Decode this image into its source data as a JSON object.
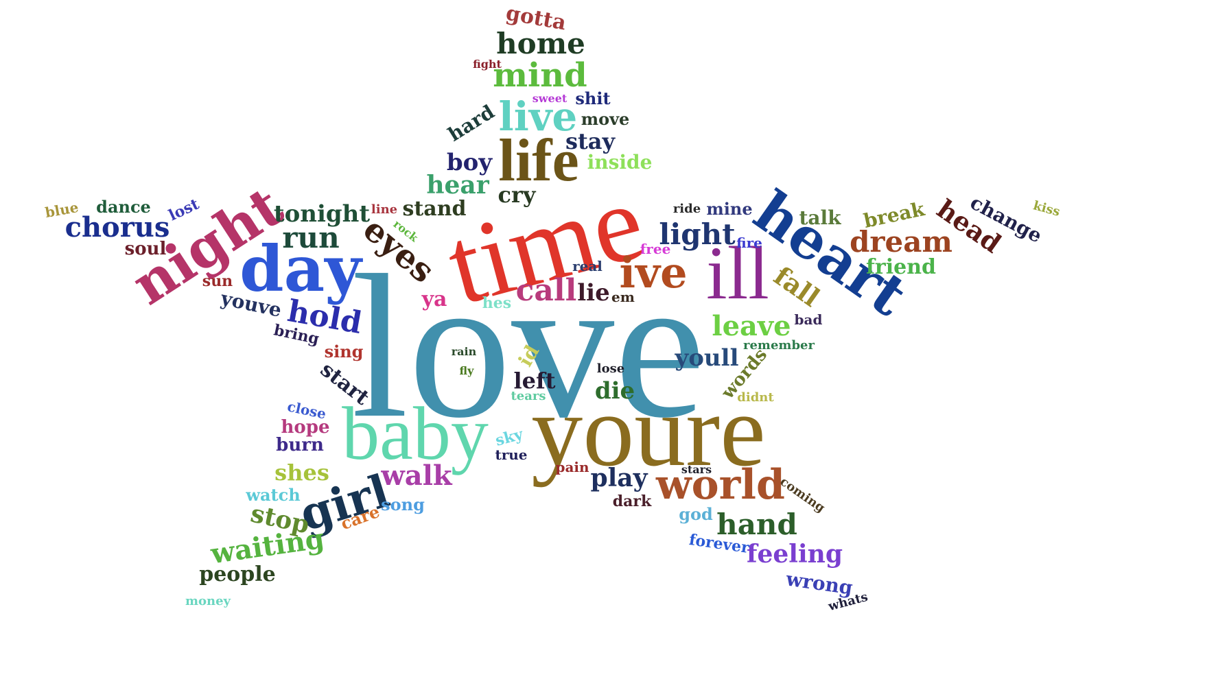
{
  "words": [
    {
      "id": "love",
      "text": "love",
      "color": "#4190ad"
    },
    {
      "id": "youre",
      "text": "youre",
      "color": "#8a6c1f"
    },
    {
      "id": "time",
      "text": "time",
      "color": "#e0352a"
    },
    {
      "id": "baby",
      "text": "baby",
      "color": "#5fd6ad"
    },
    {
      "id": "ill",
      "text": "ill",
      "color": "#8b2a8f"
    },
    {
      "id": "heart",
      "text": "heart",
      "color": "#133e91"
    },
    {
      "id": "day",
      "text": "day",
      "color": "#2e57d6"
    },
    {
      "id": "night",
      "text": "night",
      "color": "#b53468"
    },
    {
      "id": "life",
      "text": "life",
      "color": "#6b5418"
    },
    {
      "id": "world",
      "text": "world",
      "color": "#a8512a"
    },
    {
      "id": "ive",
      "text": "ive",
      "color": "#b24b1f"
    },
    {
      "id": "girl",
      "text": "girl",
      "color": "#173452"
    },
    {
      "id": "live",
      "text": "live",
      "color": "#5fd1c1"
    },
    {
      "id": "mind",
      "text": "mind",
      "color": "#5cbb3d"
    },
    {
      "id": "home",
      "text": "home",
      "color": "#1f3c24"
    },
    {
      "id": "dream",
      "text": "dream",
      "color": "#9c4320"
    },
    {
      "id": "eyes",
      "text": "eyes",
      "color": "#3a1f12"
    },
    {
      "id": "call",
      "text": "call",
      "color": "#b83b7c"
    },
    {
      "id": "hold",
      "text": "hold",
      "color": "#2b2dac"
    },
    {
      "id": "run",
      "text": "run",
      "color": "#1d4a3a"
    },
    {
      "id": "chorus",
      "text": "chorus",
      "color": "#1a2e8e"
    },
    {
      "id": "light",
      "text": "light",
      "color": "#1f3570"
    },
    {
      "id": "hand",
      "text": "hand",
      "color": "#2c5e2a"
    },
    {
      "id": "leave",
      "text": "leave",
      "color": "#6ccf43"
    },
    {
      "id": "walk",
      "text": "walk",
      "color": "#a83ea7"
    },
    {
      "id": "waiting",
      "text": "waiting",
      "color": "#55b33f"
    },
    {
      "id": "head",
      "text": "head",
      "color": "#5a1a16"
    },
    {
      "id": "fall",
      "text": "fall",
      "color": "#9a8a2a"
    },
    {
      "id": "youll",
      "text": "youll",
      "color": "#274a7a"
    },
    {
      "id": "feeling",
      "text": "feeling",
      "color": "#7a3fd0"
    },
    {
      "id": "tonight",
      "text": "tonight",
      "color": "#1f4f36"
    },
    {
      "id": "hear",
      "text": "hear",
      "color": "#3aa06b"
    },
    {
      "id": "die",
      "text": "die",
      "color": "#2e6d2d"
    },
    {
      "id": "stop",
      "text": "stop",
      "color": "#5f8a2e"
    },
    {
      "id": "play",
      "text": "play",
      "color": "#1e2f5e"
    },
    {
      "id": "boy",
      "text": "boy",
      "color": "#23236e"
    },
    {
      "id": "stay",
      "text": "stay",
      "color": "#1d2b5b"
    },
    {
      "id": "shes",
      "text": "shes",
      "color": "#a6c23a"
    },
    {
      "id": "youve",
      "text": "youve",
      "color": "#23315f"
    },
    {
      "id": "lie",
      "text": "lie",
      "color": "#3d1a2a"
    },
    {
      "id": "left",
      "text": "left",
      "color": "#261a33"
    },
    {
      "id": "cry",
      "text": "cry",
      "color": "#283a22"
    },
    {
      "id": "stand",
      "text": "stand",
      "color": "#2e3d20"
    },
    {
      "id": "change",
      "text": "change",
      "color": "#20214a"
    },
    {
      "id": "break",
      "text": "break",
      "color": "#7e8a2a"
    },
    {
      "id": "friend",
      "text": "friend",
      "color": "#4bb34a"
    },
    {
      "id": "people",
      "text": "people",
      "color": "#2c4520"
    },
    {
      "id": "wrong",
      "text": "wrong",
      "color": "#3a40b5"
    },
    {
      "id": "start",
      "text": "start",
      "color": "#1f2340"
    },
    {
      "id": "hard",
      "text": "hard",
      "color": "#1d3d3a"
    },
    {
      "id": "inside",
      "text": "inside",
      "color": "#8ee05a"
    },
    {
      "id": "talk",
      "text": "talk",
      "color": "#5a7a3a"
    },
    {
      "id": "words",
      "text": "words",
      "color": "#6b7a2a"
    },
    {
      "id": "ya",
      "text": "ya",
      "color": "#d8348a"
    },
    {
      "id": "dance",
      "text": "dance",
      "color": "#1f5c3a"
    },
    {
      "id": "mine",
      "text": "mine",
      "color": "#323a7e"
    },
    {
      "id": "gotta",
      "text": "gotta",
      "color": "#a33a3a"
    },
    {
      "id": "sing",
      "text": "sing",
      "color": "#b0342e"
    },
    {
      "id": "bring",
      "text": "bring",
      "color": "#2a1f55"
    },
    {
      "id": "hope",
      "text": "hope",
      "color": "#b53a7e"
    },
    {
      "id": "burn",
      "text": "burn",
      "color": "#3e2a8a"
    },
    {
      "id": "soul",
      "text": "soul",
      "color": "#6b1f2a"
    },
    {
      "id": "move",
      "text": "move",
      "color": "#2b3d2a"
    },
    {
      "id": "shit",
      "text": "shit",
      "color": "#1f2a7a"
    },
    {
      "id": "id",
      "text": "id",
      "color": "#c6cc5a"
    },
    {
      "id": "watch",
      "text": "watch",
      "color": "#5bc9d6"
    },
    {
      "id": "song",
      "text": "song",
      "color": "#4d9de0"
    },
    {
      "id": "care",
      "text": "care",
      "color": "#d9722a"
    },
    {
      "id": "god",
      "text": "god",
      "color": "#5bb0d6"
    },
    {
      "id": "forever",
      "text": "forever",
      "color": "#2a5ad6"
    },
    {
      "id": "coming",
      "text": "coming",
      "color": "#4a3a1f"
    },
    {
      "id": "lost",
      "text": "lost",
      "color": "#3a3ab5"
    },
    {
      "id": "sun",
      "text": "sun",
      "color": "#9a2a2a"
    },
    {
      "id": "blue",
      "text": "blue",
      "color": "#a8953a"
    },
    {
      "id": "line",
      "text": "line",
      "color": "#a8343e"
    },
    {
      "id": "rock",
      "text": "rock",
      "color": "#5ab53a"
    },
    {
      "id": "ride",
      "text": "ride",
      "color": "#2a2a2a"
    },
    {
      "id": "fire",
      "text": "fire",
      "color": "#3a3ad0"
    },
    {
      "id": "free",
      "text": "free",
      "color": "#d63ad6"
    },
    {
      "id": "real",
      "text": "real",
      "color": "#2a3d6e"
    },
    {
      "id": "hes",
      "text": "hes",
      "color": "#7de0c8"
    },
    {
      "id": "em",
      "text": "em",
      "color": "#3a2a1f"
    },
    {
      "id": "bad",
      "text": "bad",
      "color": "#3a2a5a"
    },
    {
      "id": "remember",
      "text": "remember",
      "color": "#2a7a4a"
    },
    {
      "id": "rain",
      "text": "rain",
      "color": "#2a4a2a"
    },
    {
      "id": "fly",
      "text": "fly",
      "color": "#4a7a1f"
    },
    {
      "id": "lose",
      "text": "lose",
      "color": "#1f1f2a"
    },
    {
      "id": "tears",
      "text": "tears",
      "color": "#5fcba0"
    },
    {
      "id": "didnt",
      "text": "didnt",
      "color": "#b8b84a"
    },
    {
      "id": "close",
      "text": "close",
      "color": "#3a5ad0"
    },
    {
      "id": "sky",
      "text": "sky",
      "color": "#6ad6e0"
    },
    {
      "id": "true",
      "text": "true",
      "color": "#1f1f5a"
    },
    {
      "id": "pain",
      "text": "pain",
      "color": "#9a2a2a"
    },
    {
      "id": "stars",
      "text": "stars",
      "color": "#1f1f2a"
    },
    {
      "id": "dark",
      "text": "dark",
      "color": "#4a1f2a"
    },
    {
      "id": "sweet",
      "text": "sweet",
      "color": "#b53ad6"
    },
    {
      "id": "fight",
      "text": "fight",
      "color": "#8a1f2a"
    },
    {
      "id": "kiss",
      "text": "kiss",
      "color": "#9aa83a"
    },
    {
      "id": "money",
      "text": "money",
      "color": "#6ad6c0"
    },
    {
      "id": "whats",
      "text": "whats",
      "color": "#1f1f3a"
    }
  ]
}
